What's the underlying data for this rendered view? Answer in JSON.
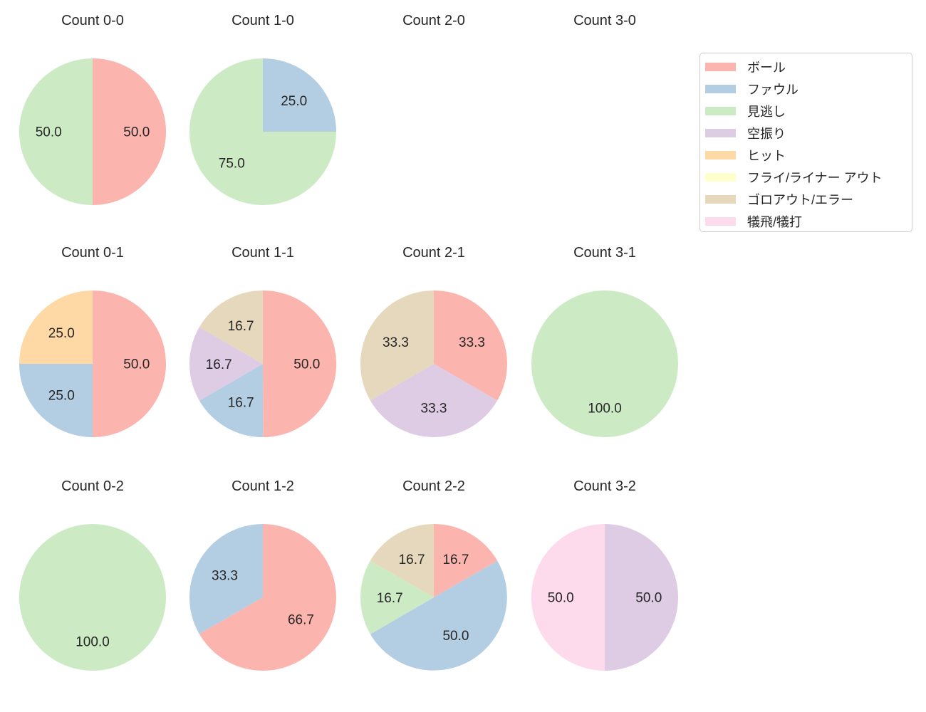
{
  "figure": {
    "background": "#ffffff",
    "text_color": "#262626"
  },
  "chart_data": {
    "type": "pie",
    "layout": {
      "rows": 3,
      "cols": 4,
      "grid_order": "row-major",
      "legend_position": "upper right",
      "start_angle_deg": 90,
      "direction": "clockwise",
      "label_format": "one-decimal-percent",
      "label_distance": 0.6
    },
    "legend": [
      {
        "label": "ボール",
        "color": "#FBB4AE"
      },
      {
        "label": "ファウル",
        "color": "#B3CDE3"
      },
      {
        "label": "見逃し",
        "color": "#CCEBC5"
      },
      {
        "label": "空振り",
        "color": "#DECBE4"
      },
      {
        "label": "ヒット",
        "color": "#FED9A6"
      },
      {
        "label": "フライ/ライナー アウト",
        "color": "#FFFFCC"
      },
      {
        "label": "ゴロアウト/エラー",
        "color": "#E5D8BD"
      },
      {
        "label": "犠飛/犠打",
        "color": "#FDDAEC"
      }
    ],
    "charts": [
      {
        "title": "Count 0-0",
        "slices": [
          {
            "category": "ボール",
            "value": 50.0
          },
          {
            "category": "見逃し",
            "value": 50.0
          }
        ]
      },
      {
        "title": "Count 1-0",
        "slices": [
          {
            "category": "ファウル",
            "value": 25.0
          },
          {
            "category": "見逃し",
            "value": 75.0
          }
        ]
      },
      {
        "title": "Count 2-0",
        "slices": []
      },
      {
        "title": "Count 3-0",
        "slices": []
      },
      {
        "title": "Count 0-1",
        "slices": [
          {
            "category": "ボール",
            "value": 50.0
          },
          {
            "category": "ファウル",
            "value": 25.0
          },
          {
            "category": "ヒット",
            "value": 25.0
          }
        ]
      },
      {
        "title": "Count 1-1",
        "slices": [
          {
            "category": "ボール",
            "value": 50.0
          },
          {
            "category": "ファウル",
            "value": 16.7
          },
          {
            "category": "空振り",
            "value": 16.7
          },
          {
            "category": "ゴロアウト/エラー",
            "value": 16.7
          }
        ]
      },
      {
        "title": "Count 2-1",
        "slices": [
          {
            "category": "ボール",
            "value": 33.3
          },
          {
            "category": "空振り",
            "value": 33.3
          },
          {
            "category": "ゴロアウト/エラー",
            "value": 33.3
          }
        ]
      },
      {
        "title": "Count 3-1",
        "slices": [
          {
            "category": "見逃し",
            "value": 100.0
          }
        ]
      },
      {
        "title": "Count 0-2",
        "slices": [
          {
            "category": "見逃し",
            "value": 100.0
          }
        ]
      },
      {
        "title": "Count 1-2",
        "slices": [
          {
            "category": "ボール",
            "value": 66.7
          },
          {
            "category": "ファウル",
            "value": 33.3
          }
        ]
      },
      {
        "title": "Count 2-2",
        "slices": [
          {
            "category": "ボール",
            "value": 16.7
          },
          {
            "category": "ファウル",
            "value": 50.0
          },
          {
            "category": "見逃し",
            "value": 16.7
          },
          {
            "category": "ゴロアウト/エラー",
            "value": 16.7
          }
        ]
      },
      {
        "title": "Count 3-2",
        "slices": [
          {
            "category": "空振り",
            "value": 50.0
          },
          {
            "category": "犠飛/犠打",
            "value": 50.0
          }
        ]
      }
    ]
  }
}
